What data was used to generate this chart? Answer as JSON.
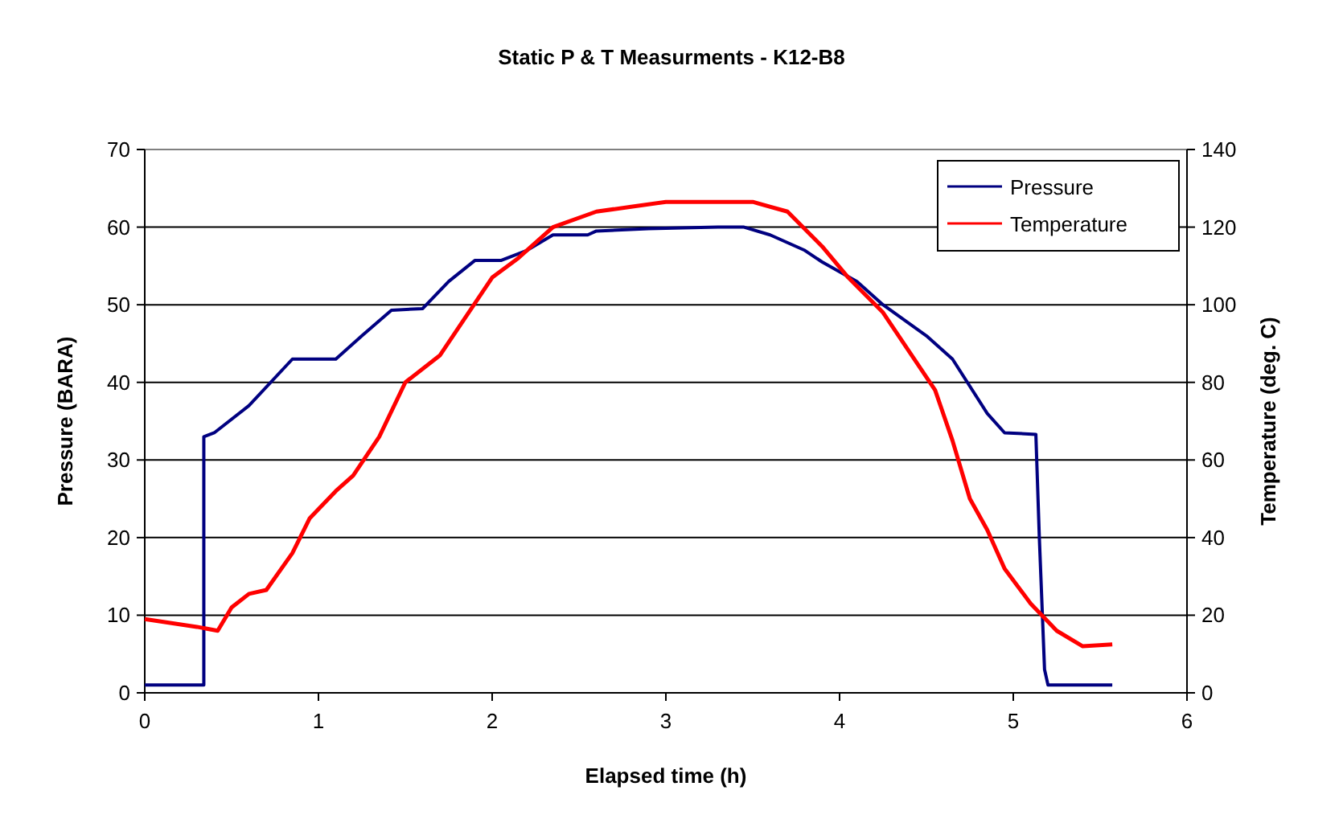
{
  "chart_data": {
    "type": "line",
    "title": "Static P & T Measurments - K12-B8",
    "xlabel": "Elapsed time (h)",
    "ylabel": "Pressure (BARA)",
    "y2label": "Temperature (deg. C)",
    "xlim": [
      0,
      6
    ],
    "xticks": [
      0,
      1,
      2,
      3,
      4,
      5,
      6
    ],
    "ylim": [
      0,
      70
    ],
    "yticks": [
      0,
      10,
      20,
      30,
      40,
      50,
      60,
      70
    ],
    "y2lim": [
      0,
      140
    ],
    "y2ticks": [
      0,
      20,
      40,
      60,
      80,
      100,
      120,
      140
    ],
    "grid": "y",
    "legend": "top right",
    "marker": "none",
    "line_style": "solid",
    "series": [
      {
        "name": "Pressure",
        "color": "#000080",
        "x": [
          0,
          0.34,
          0.34,
          0.4,
          0.6,
          0.85,
          1.1,
          1.25,
          1.42,
          1.6,
          1.75,
          1.9,
          2.05,
          2.2,
          2.35,
          2.55,
          2.6,
          2.9,
          3.3,
          3.45,
          3.6,
          3.8,
          3.9,
          4.1,
          4.25,
          4.5,
          4.65,
          4.85,
          4.95,
          5.13,
          5.15,
          5.18,
          5.2,
          5.57
        ],
        "values": [
          1,
          1,
          33,
          33.5,
          37,
          43,
          43,
          46,
          49.3,
          49.5,
          53,
          55.7,
          55.7,
          57,
          59,
          59,
          59.5,
          59.8,
          60,
          60,
          59,
          57,
          55.5,
          53,
          50,
          46,
          43,
          36,
          33.5,
          33.3,
          20,
          3,
          1,
          1
        ]
      },
      {
        "name": "Temperature",
        "color": "#ff0000",
        "axis": "y2",
        "x": [
          0,
          0.3,
          0.42,
          0.5,
          0.6,
          0.7,
          0.85,
          0.95,
          1.1,
          1.2,
          1.35,
          1.5,
          1.7,
          2,
          2.15,
          2.35,
          2.6,
          3,
          3.5,
          3.7,
          3.9,
          4.05,
          4.25,
          4.4,
          4.55,
          4.65,
          4.75,
          4.85,
          4.95,
          5.1,
          5.25,
          5.4,
          5.57
        ],
        "values": [
          19,
          17,
          16,
          22,
          25.5,
          26.5,
          36,
          45,
          52,
          56,
          66,
          80,
          87,
          107,
          112,
          120,
          124,
          126.5,
          126.5,
          124,
          115,
          107,
          98,
          88,
          78,
          65,
          50,
          42,
          32,
          23,
          16,
          12,
          12.5
        ]
      }
    ]
  }
}
